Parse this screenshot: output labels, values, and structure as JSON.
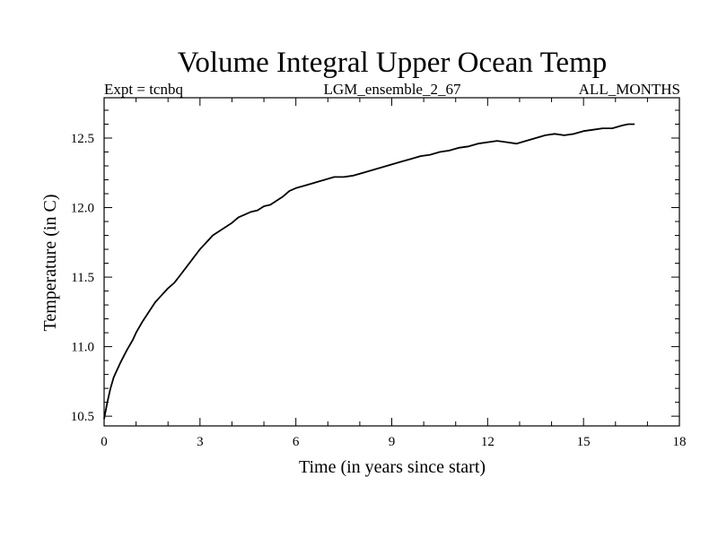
{
  "chart_data": {
    "type": "line",
    "title": "Volume Integral Upper Ocean Temp",
    "subtitle_left": "Expt = tcnbq",
    "subtitle_center": "LGM_ensemble_2_67",
    "subtitle_right": "ALL_MONTHS",
    "xlabel": "Time (in years since start)",
    "ylabel": "Temperature (in C)",
    "xlim": [
      0,
      18
    ],
    "ylim": [
      10.43,
      12.79
    ],
    "x_ticks": [
      0,
      3,
      6,
      9,
      12,
      15,
      18
    ],
    "x_tick_labels": [
      "0",
      "3",
      "6",
      "9",
      "12",
      "15",
      "18"
    ],
    "y_ticks": [
      10.5,
      11.0,
      11.5,
      12.0,
      12.5
    ],
    "y_tick_labels": [
      "10.5",
      "11.0",
      "11.5",
      "12.0",
      "12.5"
    ],
    "grid": false,
    "series": [
      {
        "name": "volume integral upper ocean temp",
        "color": "#000000",
        "x": [
          0,
          0.1,
          0.2,
          0.3,
          0.5,
          0.7,
          0.9,
          1.0,
          1.2,
          1.4,
          1.6,
          1.8,
          2.0,
          2.2,
          2.4,
          2.6,
          2.8,
          3.0,
          3.2,
          3.4,
          3.6,
          3.8,
          4.0,
          4.2,
          4.4,
          4.6,
          4.8,
          5.0,
          5.2,
          5.4,
          5.6,
          5.8,
          6.0,
          6.3,
          6.6,
          6.9,
          7.2,
          7.5,
          7.8,
          8.1,
          8.4,
          8.7,
          9.0,
          9.3,
          9.6,
          9.9,
          10.2,
          10.5,
          10.8,
          11.1,
          11.4,
          11.7,
          12.0,
          12.3,
          12.6,
          12.9,
          13.2,
          13.5,
          13.8,
          14.1,
          14.4,
          14.7,
          15.0,
          15.3,
          15.6,
          15.9,
          16.2,
          16.4,
          16.6
        ],
        "values": [
          10.48,
          10.6,
          10.7,
          10.78,
          10.88,
          10.97,
          11.05,
          11.1,
          11.18,
          11.25,
          11.32,
          11.37,
          11.42,
          11.46,
          11.52,
          11.58,
          11.64,
          11.7,
          11.75,
          11.8,
          11.83,
          11.86,
          11.89,
          11.93,
          11.95,
          11.97,
          11.98,
          12.01,
          12.02,
          12.05,
          12.08,
          12.12,
          12.14,
          12.16,
          12.18,
          12.2,
          12.22,
          12.22,
          12.23,
          12.25,
          12.27,
          12.29,
          12.31,
          12.33,
          12.35,
          12.37,
          12.38,
          12.4,
          12.41,
          12.43,
          12.44,
          12.46,
          12.47,
          12.48,
          12.47,
          12.46,
          12.48,
          12.5,
          12.52,
          12.53,
          12.52,
          12.53,
          12.55,
          12.56,
          12.57,
          12.57,
          12.59,
          12.6,
          12.6
        ]
      }
    ]
  }
}
